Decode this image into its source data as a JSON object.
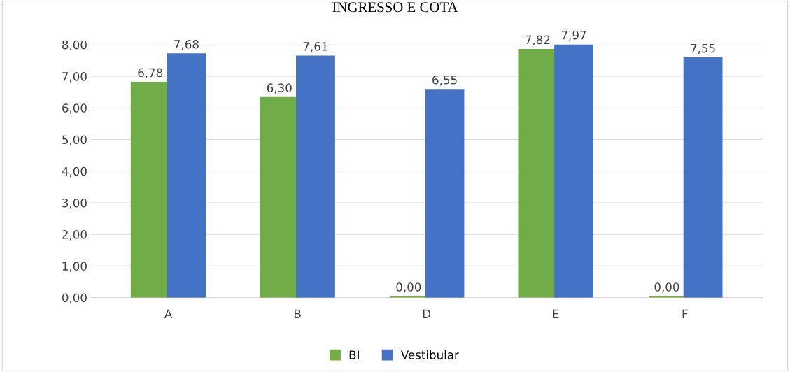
{
  "chart_data": {
    "type": "bar",
    "title": "INGRESSO E COTA",
    "categories": [
      "A",
      "B",
      "D",
      "E",
      "F"
    ],
    "series": [
      {
        "name": "BI",
        "color": "#70ad47",
        "values": [
          6.78,
          6.3,
          0,
          7.82,
          0
        ],
        "value_labels": [
          "6,78",
          "6,30",
          "0,00",
          "7,82",
          "0,00"
        ]
      },
      {
        "name": "Vestibular",
        "color": "#4472c4",
        "values": [
          7.68,
          7.61,
          6.55,
          7.97,
          7.55
        ],
        "value_labels": [
          "7,68",
          "7,61",
          "6,55",
          "7,97",
          "7,55"
        ]
      }
    ],
    "ylim": [
      0,
      8
    ],
    "yticks": [
      {
        "value": 0,
        "label": "0,00"
      },
      {
        "value": 1,
        "label": "1,00"
      },
      {
        "value": 2,
        "label": "2,00"
      },
      {
        "value": 3,
        "label": "3,00"
      },
      {
        "value": 4,
        "label": "4,00"
      },
      {
        "value": 5,
        "label": "5,00"
      },
      {
        "value": 6,
        "label": "6,00"
      },
      {
        "value": 7,
        "label": "7,00"
      },
      {
        "value": 8,
        "label": "8,00"
      }
    ],
    "grid": "y",
    "legend": "bottom"
  }
}
